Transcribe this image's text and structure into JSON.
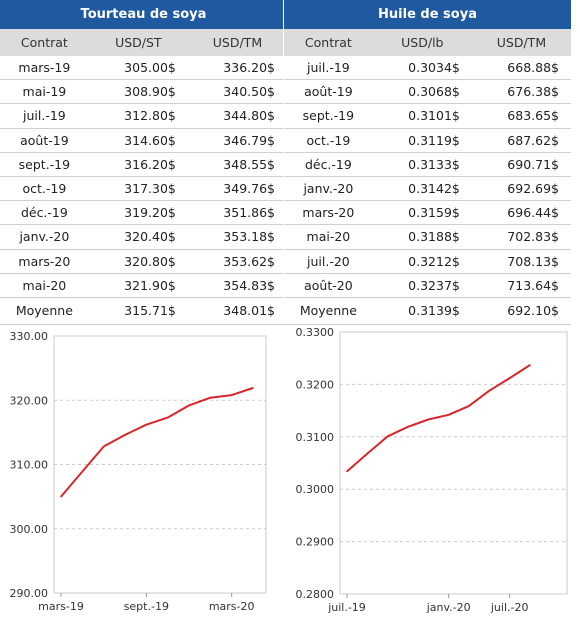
{
  "soy_meal": {
    "title": "Tourteau de soya",
    "headers": [
      "Contrat",
      "USD/ST",
      "USD/TM"
    ],
    "rows": [
      [
        "mars-19",
        "305.00$",
        "336.20$"
      ],
      [
        "mai-19",
        "308.90$",
        "340.50$"
      ],
      [
        "juil.-19",
        "312.80$",
        "344.80$"
      ],
      [
        "août-19",
        "314.60$",
        "346.79$"
      ],
      [
        "sept.-19",
        "316.20$",
        "348.55$"
      ],
      [
        "oct.-19",
        "317.30$",
        "349.76$"
      ],
      [
        "déc.-19",
        "319.20$",
        "351.86$"
      ],
      [
        "janv.-20",
        "320.40$",
        "353.18$"
      ],
      [
        "mars-20",
        "320.80$",
        "353.62$"
      ],
      [
        "mai-20",
        "321.90$",
        "354.83$"
      ]
    ],
    "average": [
      "Moyenne",
      "315.71$",
      "348.01$"
    ]
  },
  "soy_oil": {
    "title": "Huile de soya",
    "headers": [
      "Contrat",
      "USD/lb",
      "USD/TM"
    ],
    "rows": [
      [
        "juil.-19",
        "0.3034$",
        "668.88$"
      ],
      [
        "août-19",
        "0.3068$",
        "676.38$"
      ],
      [
        "sept.-19",
        "0.3101$",
        "683.65$"
      ],
      [
        "oct.-19",
        "0.3119$",
        "687.62$"
      ],
      [
        "déc.-19",
        "0.3133$",
        "690.71$"
      ],
      [
        "janv.-20",
        "0.3142$",
        "692.69$"
      ],
      [
        "mars-20",
        "0.3159$",
        "696.44$"
      ],
      [
        "mai-20",
        "0.3188$",
        "702.83$"
      ],
      [
        "juil.-20",
        "0.3212$",
        "708.13$"
      ],
      [
        "août-20",
        "0.3237$",
        "713.64$"
      ]
    ],
    "average": [
      "Moyenne",
      "0.3139$",
      "692.10$"
    ]
  },
  "chart_data": [
    {
      "type": "line",
      "categories": [
        "mars-19",
        "mai-19",
        "juil.-19",
        "août-19",
        "sept.-19",
        "oct.-19",
        "déc.-19",
        "janv.-20",
        "mars-20",
        "mai-20"
      ],
      "series": [
        {
          "values": [
            305.0,
            308.9,
            312.8,
            314.6,
            316.2,
            317.3,
            319.2,
            320.4,
            320.8,
            321.9
          ]
        }
      ],
      "ylim": [
        290,
        330
      ],
      "yticks": [
        "330.00",
        "320.00",
        "310.00",
        "300.00",
        "290.00"
      ],
      "xtick_labels": [
        "mars-19",
        "sept.-19",
        "mars-20"
      ],
      "grid": true,
      "color": "#d7262b"
    },
    {
      "type": "line",
      "categories": [
        "juil.-19",
        "août-19",
        "sept.-19",
        "oct.-19",
        "déc.-19",
        "janv.-20",
        "mars-20",
        "mai-20",
        "juil.-20",
        "août-20"
      ],
      "series": [
        {
          "values": [
            0.3034,
            0.3068,
            0.3101,
            0.3119,
            0.3133,
            0.3142,
            0.3159,
            0.3188,
            0.3212,
            0.3237
          ]
        }
      ],
      "ylim": [
        0.28,
        0.33
      ],
      "yticks": [
        "0.3300",
        "0.3200",
        "0.3100",
        "0.3000",
        "0.2900",
        "0.2800"
      ],
      "xtick_labels": [
        "juil.-19",
        "janv.-20",
        "juil.-20"
      ],
      "grid": true,
      "color": "#d7262b"
    }
  ]
}
